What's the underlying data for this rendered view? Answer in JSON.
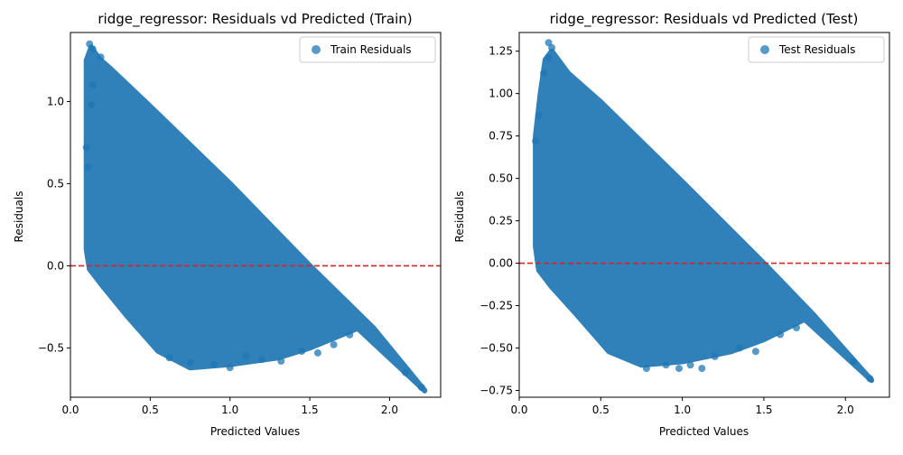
{
  "colors": {
    "points": "#1f77b4",
    "zero_line": "#d62728",
    "axes": "#000000",
    "legend_border": "#cccccc"
  },
  "chart_data": [
    {
      "type": "scatter",
      "title": "ridge_regressor: Residuals vd Predicted (Train)",
      "xlabel": "Predicted Values",
      "ylabel": "Residuals",
      "xlim": [
        0.0,
        2.32
      ],
      "ylim": [
        -0.8,
        1.42
      ],
      "xticks": [
        0.0,
        0.5,
        1.0,
        1.5,
        2.0
      ],
      "xtick_labels": [
        "0.0",
        "0.5",
        "1.0",
        "1.5",
        "2.0"
      ],
      "yticks": [
        -0.5,
        0.0,
        0.5,
        1.0
      ],
      "ytick_labels": [
        "−0.5",
        "0.0",
        "0.5",
        "1.0"
      ],
      "reference_line": {
        "y": 0.0,
        "style": "dashed"
      },
      "legend": {
        "position": "top-right"
      },
      "series": [
        {
          "name": "Train Residuals",
          "x_min": 0.1,
          "x_max": 2.22,
          "fill_region": {
            "upper": [
              [
                0.1,
                1.25
              ],
              [
                0.13,
                1.33
              ],
              [
                0.18,
                1.26
              ],
              [
                0.25,
                1.2
              ],
              [
                0.5,
                0.97
              ],
              [
                1.0,
                0.5
              ],
              [
                1.5,
                0.0
              ],
              [
                1.9,
                -0.38
              ],
              [
                2.22,
                -0.76
              ]
            ],
            "lower": [
              [
                2.22,
                -0.76
              ],
              [
                1.8,
                -0.38
              ],
              [
                1.5,
                -0.5
              ],
              [
                1.3,
                -0.56
              ],
              [
                1.0,
                -0.6
              ],
              [
                0.75,
                -0.62
              ],
              [
                0.55,
                -0.52
              ],
              [
                0.35,
                -0.3
              ],
              [
                0.2,
                -0.12
              ],
              [
                0.12,
                -0.02
              ],
              [
                0.1,
                0.1
              ]
            ]
          },
          "points": [
            {
              "x": 0.12,
              "y": 1.35
            },
            {
              "x": 0.14,
              "y": 1.32
            },
            {
              "x": 0.19,
              "y": 1.27
            },
            {
              "x": 0.13,
              "y": 0.98
            },
            {
              "x": 0.14,
              "y": 1.1
            },
            {
              "x": 0.1,
              "y": 0.72
            },
            {
              "x": 0.11,
              "y": 0.6
            },
            {
              "x": 0.62,
              "y": -0.56
            },
            {
              "x": 0.75,
              "y": -0.59
            },
            {
              "x": 0.9,
              "y": -0.6
            },
            {
              "x": 1.0,
              "y": -0.62
            },
            {
              "x": 1.1,
              "y": -0.55
            },
            {
              "x": 1.2,
              "y": -0.57
            },
            {
              "x": 1.32,
              "y": -0.58
            },
            {
              "x": 1.45,
              "y": -0.52
            },
            {
              "x": 1.55,
              "y": -0.53
            },
            {
              "x": 1.65,
              "y": -0.48
            },
            {
              "x": 1.75,
              "y": -0.42
            },
            {
              "x": 2.1,
              "y": -0.65
            },
            {
              "x": 2.2,
              "y": -0.74
            }
          ]
        }
      ]
    },
    {
      "type": "scatter",
      "title": "ridge_regressor: Residuals vd Predicted (Test)",
      "xlabel": "Predicted Values",
      "ylabel": "Residuals",
      "xlim": [
        0.0,
        2.27
      ],
      "ylim": [
        -0.79,
        1.36
      ],
      "xticks": [
        0.0,
        0.5,
        1.0,
        1.5,
        2.0
      ],
      "xtick_labels": [
        "0.0",
        "0.5",
        "1.0",
        "1.5",
        "2.0"
      ],
      "yticks": [
        -0.75,
        -0.5,
        -0.25,
        0.0,
        0.25,
        0.5,
        0.75,
        1.0,
        1.25
      ],
      "ytick_labels": [
        "−0.75",
        "−0.50",
        "−0.25",
        "0.00",
        "0.25",
        "0.50",
        "0.75",
        "1.00",
        "1.25"
      ],
      "reference_line": {
        "y": 0.0,
        "style": "dashed"
      },
      "legend": {
        "position": "top-right"
      },
      "series": [
        {
          "name": "Test Residuals",
          "x_min": 0.1,
          "x_max": 2.16,
          "fill_region": {
            "upper": [
              [
                0.1,
                0.75
              ],
              [
                0.13,
                1.0
              ],
              [
                0.16,
                1.2
              ],
              [
                0.2,
                1.25
              ],
              [
                0.3,
                1.12
              ],
              [
                0.5,
                0.95
              ],
              [
                1.0,
                0.48
              ],
              [
                1.5,
                0.0
              ],
              [
                1.8,
                -0.3
              ],
              [
                2.16,
                -0.69
              ]
            ],
            "lower": [
              [
                2.16,
                -0.69
              ],
              [
                1.75,
                -0.33
              ],
              [
                1.5,
                -0.45
              ],
              [
                1.3,
                -0.52
              ],
              [
                1.0,
                -0.58
              ],
              [
                0.75,
                -0.6
              ],
              [
                0.55,
                -0.52
              ],
              [
                0.35,
                -0.3
              ],
              [
                0.2,
                -0.14
              ],
              [
                0.12,
                -0.04
              ],
              [
                0.1,
                0.1
              ]
            ]
          },
          "points": [
            {
              "x": 0.18,
              "y": 1.3
            },
            {
              "x": 0.2,
              "y": 1.27
            },
            {
              "x": 0.18,
              "y": 1.21
            },
            {
              "x": 0.15,
              "y": 1.12
            },
            {
              "x": 0.12,
              "y": 0.87
            },
            {
              "x": 0.1,
              "y": 0.72
            },
            {
              "x": 0.78,
              "y": -0.62
            },
            {
              "x": 0.9,
              "y": -0.6
            },
            {
              "x": 0.98,
              "y": -0.62
            },
            {
              "x": 1.05,
              "y": -0.6
            },
            {
              "x": 1.12,
              "y": -0.62
            },
            {
              "x": 1.2,
              "y": -0.55
            },
            {
              "x": 1.35,
              "y": -0.5
            },
            {
              "x": 1.45,
              "y": -0.52
            },
            {
              "x": 1.6,
              "y": -0.42
            },
            {
              "x": 1.7,
              "y": -0.38
            },
            {
              "x": 2.05,
              "y": -0.58
            },
            {
              "x": 2.15,
              "y": -0.68
            }
          ]
        }
      ]
    }
  ]
}
